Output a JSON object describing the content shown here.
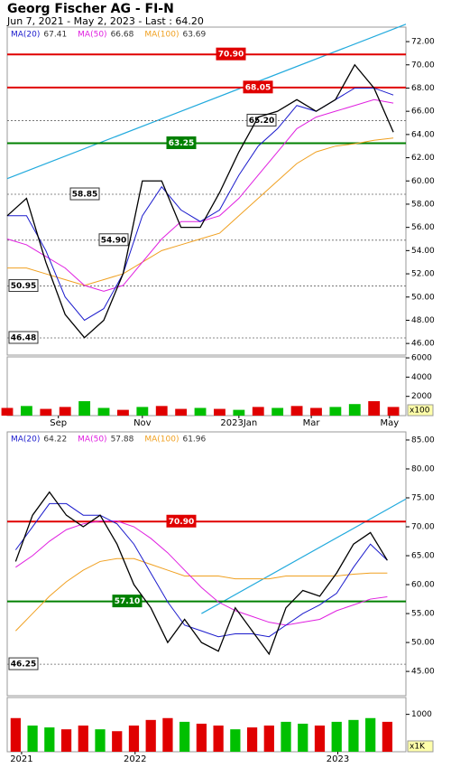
{
  "chart_data": [
    {
      "type": "line",
      "title": "Georg Fischer AG - FI-N",
      "subtitle": "Jun 7, 2021 - May 2, 2023 - Last : 64.20",
      "x": [
        0,
        2,
        4,
        6,
        8,
        10,
        12,
        14,
        16,
        18,
        20,
        22,
        24,
        26,
        28,
        30,
        32,
        34,
        36,
        38,
        40
      ],
      "xlim": [
        0,
        41.3
      ],
      "ylim": [
        45,
        73.25
      ],
      "yticks": [
        {
          "value": 46,
          "label": "46.00"
        },
        {
          "value": 48,
          "label": "48.00"
        },
        {
          "value": 50,
          "label": "50.00"
        },
        {
          "value": 52,
          "label": "52.00"
        },
        {
          "value": 54,
          "label": "54.00"
        },
        {
          "value": 56,
          "label": "56.00"
        },
        {
          "value": 58,
          "label": "58.00"
        },
        {
          "value": 60,
          "label": "60.00"
        },
        {
          "value": 62,
          "label": "62.00"
        },
        {
          "value": 64,
          "label": "64.00"
        },
        {
          "value": 66,
          "label": "66.00"
        },
        {
          "value": 68,
          "label": "68.00"
        },
        {
          "value": 70,
          "label": "70.00"
        },
        {
          "value": 72,
          "label": "72.00"
        }
      ],
      "series": [
        {
          "color": "#000000",
          "values": [
            57,
            58.5,
            53,
            48.5,
            46.5,
            48,
            52,
            60,
            60,
            56,
            56,
            59,
            62.5,
            65.5,
            66,
            67,
            66,
            67,
            70,
            68,
            64.2
          ]
        },
        {
          "name": "MA(20)",
          "last": 67.41,
          "color": "#1a1acc",
          "values": [
            57,
            57,
            54,
            50,
            48,
            49,
            52,
            57,
            59.5,
            57.5,
            56.5,
            57.5,
            60.5,
            63,
            64.5,
            66.5,
            66,
            67,
            68,
            68,
            67.4
          ]
        },
        {
          "name": "MA(50)",
          "last": 66.68,
          "color": "#e020e0",
          "values": [
            55,
            54.5,
            53.5,
            52.5,
            51,
            50.5,
            51,
            53,
            55,
            56.5,
            56.5,
            57,
            58.5,
            60.5,
            62.5,
            64.5,
            65.5,
            66,
            66.5,
            67,
            66.7
          ]
        },
        {
          "name": "MA(100)",
          "last": 63.69,
          "color": "#f0a020",
          "values": [
            52.5,
            52.5,
            52,
            51.5,
            51,
            51.5,
            52,
            53,
            54,
            54.5,
            55,
            55.5,
            57,
            58.5,
            60,
            61.5,
            62.5,
            63,
            63.2,
            63.5,
            63.7
          ]
        }
      ],
      "levels": [
        {
          "value": 70.9,
          "label": "70.90",
          "color": "#e00000"
        },
        {
          "value": 68.05,
          "label": "68.05",
          "color": "#e00000"
        },
        {
          "value": 65.2,
          "label": "65.20",
          "color": "#555555"
        },
        {
          "value": 63.25,
          "label": "63.25",
          "color": "#008000"
        },
        {
          "value": 58.85,
          "label": "58.85",
          "color": "#555555"
        },
        {
          "value": 54.9,
          "label": "54.90",
          "color": "#555555"
        },
        {
          "value": 50.95,
          "label": "50.95",
          "color": "#555555"
        },
        {
          "value": 46.48,
          "label": "46.48",
          "color": "#555555"
        }
      ],
      "trendline": {
        "x": [
          0,
          41.3
        ],
        "values": [
          60.2,
          73.5
        ],
        "color": "#22aadd"
      }
    },
    {
      "type": "bar",
      "x": [
        0,
        2,
        4,
        6,
        8,
        10,
        12,
        14,
        16,
        18,
        20,
        22,
        24,
        26,
        28,
        30,
        32,
        34,
        36,
        38,
        40
      ],
      "xlim": [
        0,
        41.3
      ],
      "values": [
        800,
        1000,
        700,
        900,
        1500,
        800,
        600,
        900,
        1000,
        700,
        800,
        700,
        600,
        900,
        800,
        1000,
        800,
        900,
        1200,
        1500,
        900
      ],
      "colors": [
        "#e00000",
        "#00c000",
        "#e00000",
        "#e00000",
        "#00c000",
        "#00c000",
        "#e00000",
        "#00c000",
        "#e00000",
        "#e00000",
        "#00c000",
        "#e00000",
        "#00c000",
        "#e00000",
        "#00c000",
        "#e00000",
        "#e00000",
        "#00c000",
        "#00c000",
        "#e00000",
        "#e00000"
      ],
      "ylim": [
        0,
        6100
      ],
      "yticks": [
        2000,
        4000,
        6000
      ],
      "unit": "x100",
      "xticks": [
        {
          "value": 5.3,
          "label": "Sep"
        },
        {
          "value": 14,
          "label": "Nov"
        },
        {
          "value": 24,
          "label": "2023Jan"
        },
        {
          "value": 31.5,
          "label": "Mar"
        },
        {
          "value": 39.6,
          "label": "May"
        }
      ]
    },
    {
      "type": "line",
      "x": [
        0.5,
        1.5,
        2.5,
        3.5,
        4.5,
        5.5,
        6.5,
        7.5,
        8.5,
        9.5,
        10.5,
        11.5,
        12.5,
        13.5,
        14.5,
        15.5,
        16.5,
        17.5,
        18.5,
        19.5,
        20.5,
        21.5,
        22.5
      ],
      "xlim": [
        0,
        23.6
      ],
      "ylim": [
        40.8,
        86.4
      ],
      "yticks": [
        {
          "value": 45,
          "label": "45.00"
        },
        {
          "value": 50,
          "label": "50.00"
        },
        {
          "value": 55,
          "label": "55.00"
        },
        {
          "value": 60,
          "label": "60.00"
        },
        {
          "value": 65,
          "label": "65.00"
        },
        {
          "value": 70,
          "label": "70.00"
        },
        {
          "value": 75,
          "label": "75.00"
        },
        {
          "value": 80,
          "label": "80.00"
        },
        {
          "value": 85,
          "label": "85.00"
        }
      ],
      "series": [
        {
          "color": "#000000",
          "values": [
            64,
            72,
            76,
            72,
            70,
            72,
            67,
            60,
            56,
            50,
            54,
            50,
            48.5,
            56,
            52,
            48,
            56,
            59,
            58,
            62,
            67,
            69,
            64.2
          ]
        },
        {
          "name": "MA(20)",
          "last": 64.22,
          "color": "#1a1acc",
          "values": [
            66,
            70,
            74,
            74,
            72,
            72,
            70.5,
            67,
            62,
            57,
            53,
            52,
            51,
            51.5,
            51.5,
            51,
            53,
            55,
            56.5,
            58.5,
            63,
            67,
            64.2
          ]
        },
        {
          "name": "MA(50)",
          "last": 57.88,
          "color": "#e020e0",
          "values": [
            63,
            65,
            67.5,
            69.5,
            70.5,
            71,
            71,
            70,
            68,
            65.5,
            62.5,
            59.5,
            57,
            55.5,
            54.5,
            53.5,
            53,
            53.5,
            54,
            55.5,
            56.5,
            57.5,
            57.9
          ]
        },
        {
          "name": "MA(100)",
          "last": 61.96,
          "color": "#f0a020",
          "values": [
            52,
            55,
            58,
            60.5,
            62.5,
            64,
            64.5,
            64.5,
            63.5,
            62.5,
            61.5,
            61.5,
            61.5,
            61,
            61,
            61,
            61.5,
            61.5,
            61.5,
            61.5,
            61.8,
            62,
            62
          ]
        }
      ],
      "levels": [
        {
          "value": 70.9,
          "label": "70.90",
          "color": "#e00000"
        },
        {
          "value": 57.1,
          "label": "57.10",
          "color": "#008000"
        },
        {
          "value": 46.25,
          "label": "46.25",
          "color": "#555555"
        }
      ],
      "trendline": {
        "x": [
          11.5,
          23.6
        ],
        "values": [
          55,
          74.8
        ],
        "color": "#22aadd"
      }
    },
    {
      "type": "bar",
      "x": [
        0.5,
        1.5,
        2.5,
        3.5,
        4.5,
        5.5,
        6.5,
        7.5,
        8.5,
        9.5,
        10.5,
        11.5,
        12.5,
        13.5,
        14.5,
        15.5,
        16.5,
        17.5,
        18.5,
        19.5,
        20.5,
        21.5,
        22.5
      ],
      "xlim": [
        0,
        23.6
      ],
      "values": [
        900,
        700,
        650,
        600,
        700,
        600,
        550,
        700,
        850,
        900,
        800,
        750,
        700,
        600,
        650,
        700,
        800,
        750,
        700,
        800,
        850,
        900,
        800
      ],
      "colors": [
        "#e00000",
        "#00c000",
        "#00c000",
        "#e00000",
        "#e00000",
        "#00c000",
        "#e00000",
        "#e00000",
        "#e00000",
        "#e00000",
        "#00c000",
        "#e00000",
        "#e00000",
        "#00c000",
        "#e00000",
        "#e00000",
        "#00c000",
        "#00c000",
        "#e00000",
        "#00c000",
        "#00c000",
        "#00c000",
        "#e00000"
      ],
      "ylim": [
        0,
        1450
      ],
      "yticks": [
        1000
      ],
      "unit": "x1K",
      "xticks": [
        {
          "value": 0.85,
          "label": "2021"
        },
        {
          "value": 7.57,
          "label": "2022"
        },
        {
          "value": 19.57,
          "label": "2023"
        }
      ]
    }
  ]
}
